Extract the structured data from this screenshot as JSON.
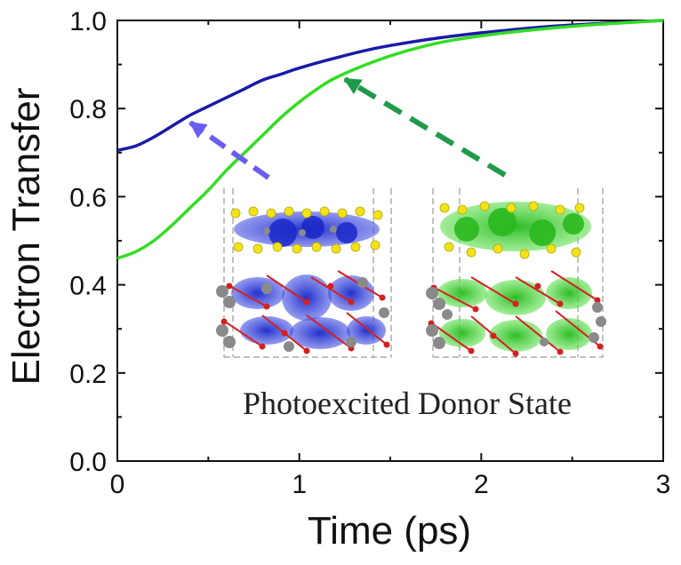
{
  "colors": {
    "series_blue": "#1a1aa8",
    "series_green": "#33dd22",
    "arrow_blue": "#6a5df0",
    "arrow_green": "#1f9a4a",
    "axis": "#111111",
    "atom_yellow": "#f2e21a",
    "atom_red": "#d42020",
    "atom_gray": "#8a8a8a",
    "density_blue": "#2a35d8",
    "density_green": "#3fcf2a"
  },
  "chart_data": {
    "type": "line",
    "title": "",
    "xlabel": "Time (ps)",
    "ylabel": "Electron Transfer",
    "xlim": [
      0,
      3
    ],
    "ylim": [
      0,
      1
    ],
    "xticks": [
      "0",
      "1",
      "2",
      "3"
    ],
    "yticks": [
      "0.0",
      "0.2",
      "0.4",
      "0.6",
      "0.8",
      "1.0"
    ],
    "grid": false,
    "legend": "none",
    "series": [
      {
        "name": "blue",
        "color": "#1a1aa8",
        "x": [
          0,
          0.1,
          0.2,
          0.3,
          0.4,
          0.5,
          0.6,
          0.7,
          0.8,
          0.9,
          1.0,
          1.2,
          1.4,
          1.6,
          1.8,
          2.0,
          2.2,
          2.4,
          2.6,
          2.8,
          3.0
        ],
        "y": [
          0.705,
          0.715,
          0.735,
          0.76,
          0.785,
          0.805,
          0.825,
          0.845,
          0.865,
          0.878,
          0.892,
          0.915,
          0.935,
          0.95,
          0.962,
          0.972,
          0.98,
          0.987,
          0.992,
          0.996,
          1.0
        ]
      },
      {
        "name": "green",
        "color": "#33dd22",
        "x": [
          0,
          0.1,
          0.2,
          0.3,
          0.4,
          0.5,
          0.6,
          0.7,
          0.8,
          0.9,
          1.0,
          1.1,
          1.2,
          1.4,
          1.6,
          1.8,
          2.0,
          2.2,
          2.4,
          2.6,
          2.8,
          3.0
        ],
        "y": [
          0.46,
          0.475,
          0.5,
          0.535,
          0.575,
          0.615,
          0.66,
          0.7,
          0.74,
          0.78,
          0.815,
          0.845,
          0.87,
          0.905,
          0.932,
          0.952,
          0.965,
          0.975,
          0.983,
          0.99,
          0.995,
          1.0
        ]
      }
    ],
    "annotations": [
      {
        "text": "Photoexcited Donor State",
        "type": "inset-caption"
      },
      {
        "type": "arrow",
        "series": "blue",
        "style": "dashed",
        "points_to": {
          "x": 0.4,
          "y": 0.785
        }
      },
      {
        "type": "arrow",
        "series": "green",
        "style": "dashed",
        "points_to": {
          "x": 1.22,
          "y": 0.87
        }
      }
    ]
  }
}
